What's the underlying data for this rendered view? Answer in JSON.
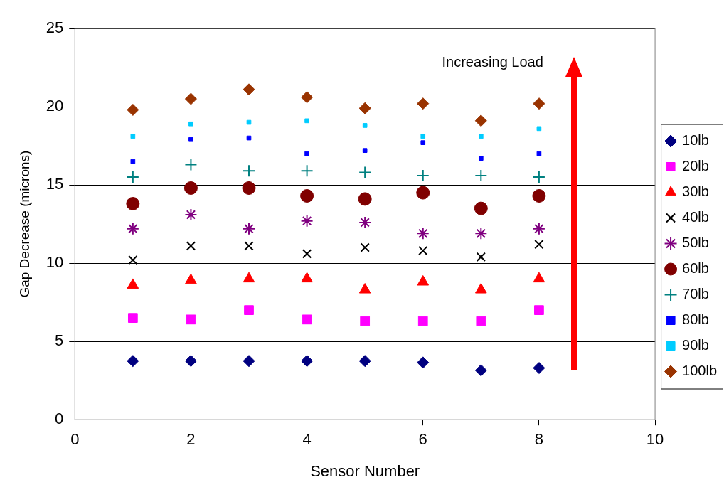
{
  "chart_data": {
    "type": "scatter",
    "xlabel": "Sensor Number",
    "ylabel": "Gap Decrease (microns)",
    "x": [
      1,
      2,
      3,
      4,
      5,
      6,
      7,
      8
    ],
    "xlim": [
      0,
      10
    ],
    "xticks": [
      0,
      2,
      4,
      6,
      8,
      10
    ],
    "ylim": [
      0,
      25
    ],
    "yticks": [
      0,
      5,
      10,
      15,
      20,
      25
    ],
    "grid": "y",
    "legend": "right",
    "annotations": [
      "Increasing Load"
    ],
    "series": [
      {
        "name": "10lb",
        "color": "#000080",
        "marker": "diamond",
        "values": [
          3.75,
          3.75,
          3.75,
          3.75,
          3.75,
          3.65,
          3.15,
          3.3
        ]
      },
      {
        "name": "20lb",
        "color": "#ff00ff",
        "marker": "square",
        "values": [
          6.5,
          6.4,
          7.0,
          6.4,
          6.3,
          6.3,
          6.3,
          7.0
        ]
      },
      {
        "name": "30lb",
        "color": "#ff0000",
        "marker": "triangle",
        "values": [
          8.6,
          8.9,
          9.0,
          9.0,
          8.3,
          8.8,
          8.3,
          9.0
        ]
      },
      {
        "name": "40lb",
        "color": "#000000",
        "marker": "cross",
        "values": [
          10.2,
          11.1,
          11.1,
          10.6,
          11.0,
          10.8,
          10.4,
          11.2
        ]
      },
      {
        "name": "50lb",
        "color": "#800080",
        "marker": "cross",
        "values": [
          12.2,
          13.1,
          12.2,
          12.7,
          12.6,
          11.9,
          11.9,
          12.2
        ]
      },
      {
        "name": "60lb",
        "color": "#800000",
        "marker": "circle",
        "values": [
          13.8,
          14.8,
          14.8,
          14.3,
          14.1,
          14.5,
          13.5,
          14.3
        ]
      },
      {
        "name": "70lb",
        "color": "#008080",
        "marker": "cross",
        "values": [
          15.5,
          16.3,
          15.9,
          15.9,
          15.8,
          15.6,
          15.6,
          15.5
        ]
      },
      {
        "name": "80lb",
        "color": "#0000ff",
        "marker": "square",
        "values": [
          16.5,
          17.9,
          18.0,
          17.0,
          17.2,
          17.7,
          16.7,
          17.0
        ]
      },
      {
        "name": "90lb",
        "color": "#00ccff",
        "marker": "square",
        "values": [
          18.1,
          18.9,
          19.0,
          19.1,
          18.8,
          18.1,
          18.1,
          18.6
        ]
      },
      {
        "name": "100lb",
        "color": "#993300",
        "marker": "diamond",
        "values": [
          19.8,
          20.5,
          21.1,
          20.6,
          19.9,
          20.2,
          19.1,
          20.2
        ]
      }
    ]
  }
}
